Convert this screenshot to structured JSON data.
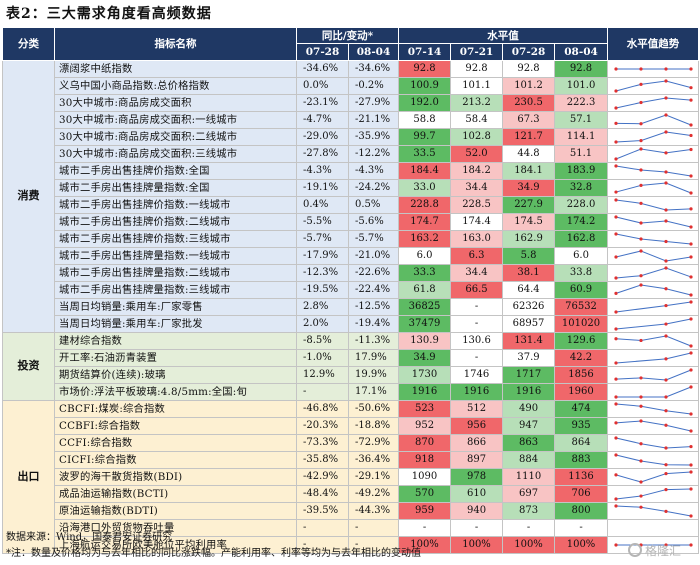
{
  "title": "表2：三大需求角度看高频数据",
  "header": {
    "category": "分类",
    "indicator": "指标名称",
    "yoy_group": "同比/变动*",
    "level_group": "水平值",
    "trend": "水平值趋势",
    "yoy_dates": [
      "07-28",
      "08-04"
    ],
    "level_dates": [
      "07-14",
      "07-21",
      "07-28",
      "08-04"
    ]
  },
  "colors": {
    "header_bg": "#1f3864",
    "consumption_bg": "#dfe8f5",
    "investment_bg": "#e4eed9",
    "export_bg": "#fdf0d2",
    "green_strong": "#5dbb63",
    "green_light": "#b7dfb8",
    "red_strong": "#f0676a",
    "red_light": "#f8c4c4",
    "neutral": "#ffffff",
    "spark_line": "#4472c4",
    "spark_point": "#e03030"
  },
  "groups": [
    {
      "name": "消费",
      "bg": "#dfe8f5",
      "rows": [
        {
          "name": "漂阔浆中纸指数",
          "yoy": [
            "-34.6%",
            "-34.6%"
          ],
          "levels": [
            "92.8",
            "92.8",
            "92.8",
            "92.8"
          ],
          "shade": [
            "rs",
            "w",
            "w",
            "gs"
          ],
          "trend": [
            92.8,
            92.8,
            92.8,
            92.8
          ]
        },
        {
          "name": "义乌中国小商品指数:总价格指数",
          "yoy": [
            "0.0%",
            "-0.2%"
          ],
          "levels": [
            "100.9",
            "101.1",
            "101.2",
            "101.0"
          ],
          "shade": [
            "gs",
            "w",
            "rl",
            "gl"
          ],
          "trend": [
            100.9,
            101.1,
            101.2,
            101.0
          ]
        },
        {
          "name": "30大中城市:商品房成交面积",
          "yoy": [
            "-23.1%",
            "-27.9%"
          ],
          "levels": [
            "192.0",
            "213.2",
            "230.5",
            "222.3"
          ],
          "shade": [
            "gs",
            "gl",
            "rs",
            "rl"
          ],
          "trend": [
            192.0,
            213.2,
            230.5,
            222.3
          ]
        },
        {
          "name": "30大中城市:商品房成交面积:一线城市",
          "yoy": [
            "-4.7%",
            "-21.1%"
          ],
          "levels": [
            "58.8",
            "58.4",
            "67.3",
            "57.1"
          ],
          "shade": [
            "w",
            "w",
            "rl",
            "gl"
          ],
          "trend": [
            58.8,
            58.4,
            67.3,
            57.1
          ]
        },
        {
          "name": "30大中城市:商品房成交面积:二线城市",
          "yoy": [
            "-29.0%",
            "-35.9%"
          ],
          "levels": [
            "99.7",
            "102.8",
            "121.7",
            "114.1"
          ],
          "shade": [
            "gs",
            "gl",
            "rs",
            "rl"
          ],
          "trend": [
            99.7,
            102.8,
            121.7,
            114.1
          ]
        },
        {
          "name": "30大中城市:商品房成交面积:三线城市",
          "yoy": [
            "-27.8%",
            "-12.2%"
          ],
          "levels": [
            "33.5",
            "52.0",
            "44.8",
            "51.1"
          ],
          "shade": [
            "gs",
            "rs",
            "w",
            "rl"
          ],
          "trend": [
            33.5,
            52.0,
            44.8,
            51.1
          ]
        },
        {
          "name": "城市二手房出售挂牌价指数:全国",
          "yoy": [
            "-4.3%",
            "-4.3%"
          ],
          "levels": [
            "184.4",
            "184.2",
            "184.1",
            "183.9"
          ],
          "shade": [
            "rs",
            "rl",
            "gl",
            "gs"
          ],
          "trend": [
            184.4,
            184.2,
            184.1,
            183.9
          ]
        },
        {
          "name": "城市二手房出售挂牌量指数:全国",
          "yoy": [
            "-19.1%",
            "-24.2%"
          ],
          "levels": [
            "33.0",
            "34.4",
            "34.9",
            "32.8"
          ],
          "shade": [
            "gl",
            "rl",
            "rs",
            "gs"
          ],
          "trend": [
            33.0,
            34.4,
            34.9,
            32.8
          ]
        },
        {
          "name": "城市二手房出售挂牌价指数:一线城市",
          "yoy": [
            "0.4%",
            "0.5%"
          ],
          "levels": [
            "228.8",
            "228.5",
            "227.9",
            "228.0"
          ],
          "shade": [
            "rs",
            "rl",
            "gs",
            "gl"
          ],
          "trend": [
            228.8,
            228.5,
            227.9,
            228.0
          ]
        },
        {
          "name": "城市二手房出售挂牌价指数:二线城市",
          "yoy": [
            "-5.5%",
            "-5.6%"
          ],
          "levels": [
            "174.7",
            "174.4",
            "174.5",
            "174.2"
          ],
          "shade": [
            "rs",
            "w",
            "rl",
            "gs"
          ],
          "trend": [
            174.7,
            174.4,
            174.5,
            174.2
          ]
        },
        {
          "name": "城市二手房出售挂牌价指数:三线城市",
          "yoy": [
            "-5.7%",
            "-5.7%"
          ],
          "levels": [
            "163.2",
            "163.0",
            "162.9",
            "162.8"
          ],
          "shade": [
            "rs",
            "rl",
            "gl",
            "gs"
          ],
          "trend": [
            163.2,
            163.0,
            162.9,
            162.8
          ]
        },
        {
          "name": "城市二手房出售挂牌量指数:一线城市",
          "yoy": [
            "-17.9%",
            "-21.0%"
          ],
          "levels": [
            "6.0",
            "6.3",
            "5.8",
            "6.0"
          ],
          "shade": [
            "w",
            "rs",
            "gs",
            "w"
          ],
          "trend": [
            6.0,
            6.3,
            5.8,
            6.0
          ]
        },
        {
          "name": "城市二手房出售挂牌量指数:二线城市",
          "yoy": [
            "-12.3%",
            "-22.6%"
          ],
          "levels": [
            "33.3",
            "34.4",
            "38.1",
            "33.8"
          ],
          "shade": [
            "gs",
            "rl",
            "rs",
            "gl"
          ],
          "trend": [
            33.3,
            34.4,
            38.1,
            33.8
          ]
        },
        {
          "name": "城市二手房出售挂牌量指数:三线城市",
          "yoy": [
            "-19.5%",
            "-22.4%"
          ],
          "levels": [
            "61.8",
            "66.5",
            "64.4",
            "60.9"
          ],
          "shade": [
            "gl",
            "rs",
            "w",
            "gs"
          ],
          "trend": [
            61.8,
            66.5,
            64.4,
            60.9
          ]
        },
        {
          "name": "当周日均销量:乘用车:厂家零售",
          "yoy": [
            "2.8%",
            "-12.5%"
          ],
          "levels": [
            "36825",
            "-",
            "62326",
            "76532"
          ],
          "shade": [
            "gs",
            "w",
            "w",
            "rs"
          ],
          "trend": [
            36825,
            null,
            62326,
            76532
          ]
        },
        {
          "name": "当周日均销量:乘用车:厂家批发",
          "yoy": [
            "2.0%",
            "-19.4%"
          ],
          "levels": [
            "37479",
            "-",
            "68957",
            "101020"
          ],
          "shade": [
            "gs",
            "w",
            "w",
            "rs"
          ],
          "trend": [
            37479,
            null,
            68957,
            101020
          ]
        }
      ]
    },
    {
      "name": "投资",
      "bg": "#e4eed9",
      "rows": [
        {
          "name": "建材综合指数",
          "yoy": [
            "-8.5%",
            "-11.3%"
          ],
          "levels": [
            "130.9",
            "130.6",
            "131.4",
            "129.6"
          ],
          "shade": [
            "rl",
            "w",
            "rs",
            "gs"
          ],
          "trend": [
            130.9,
            130.6,
            131.4,
            129.6
          ]
        },
        {
          "name": "开工率:石油沥青装置",
          "yoy": [
            "-1.0%",
            "17.9%"
          ],
          "levels": [
            "34.9",
            "-",
            "37.9",
            "42.2"
          ],
          "shade": [
            "gs",
            "w",
            "w",
            "rs"
          ],
          "trend": [
            34.9,
            null,
            37.9,
            42.2
          ]
        },
        {
          "name": "期货结算价(连续):玻璃",
          "yoy": [
            "12.9%",
            "19.9%"
          ],
          "levels": [
            "1730",
            "1746",
            "1717",
            "1856"
          ],
          "shade": [
            "gl",
            "w",
            "gs",
            "rs"
          ],
          "trend": [
            1730,
            1746,
            1717,
            1856
          ]
        },
        {
          "name": "市场价:浮法平板玻璃:4.8/5mm:全国:旬",
          "yoy": [
            "-",
            "17.1%"
          ],
          "levels": [
            "1916",
            "1916",
            "1916",
            "1960"
          ],
          "shade": [
            "gs",
            "gs",
            "gs",
            "rs"
          ],
          "trend": [
            1916,
            1916,
            1916,
            1960
          ]
        }
      ]
    },
    {
      "name": "出口",
      "bg": "#fdf0d2",
      "rows": [
        {
          "name": "CBCFI:煤炭:综合指数",
          "yoy": [
            "-46.8%",
            "-50.6%"
          ],
          "levels": [
            "523",
            "512",
            "490",
            "474"
          ],
          "shade": [
            "rs",
            "rl",
            "gl",
            "gs"
          ],
          "trend": [
            523,
            512,
            490,
            474
          ]
        },
        {
          "name": "CCBFI:综合指数",
          "yoy": [
            "-20.3%",
            "-18.8%"
          ],
          "levels": [
            "952",
            "956",
            "947",
            "935"
          ],
          "shade": [
            "rl",
            "rs",
            "gl",
            "gs"
          ],
          "trend": [
            952,
            956,
            947,
            935
          ]
        },
        {
          "name": "CCFI:综合指数",
          "yoy": [
            "-73.3%",
            "-72.9%"
          ],
          "levels": [
            "870",
            "866",
            "863",
            "864"
          ],
          "shade": [
            "rs",
            "rl",
            "gs",
            "gl"
          ],
          "trend": [
            870,
            866,
            863,
            864
          ]
        },
        {
          "name": "CICFI:综合指数",
          "yoy": [
            "-35.8%",
            "-36.4%"
          ],
          "levels": [
            "918",
            "897",
            "884",
            "883"
          ],
          "shade": [
            "rs",
            "rl",
            "gl",
            "gs"
          ],
          "trend": [
            918,
            897,
            884,
            883
          ]
        },
        {
          "name": "波罗的海干散货指数(BDI)",
          "yoy": [
            "-42.9%",
            "-29.1%"
          ],
          "levels": [
            "1090",
            "978",
            "1110",
            "1136"
          ],
          "shade": [
            "w",
            "gs",
            "rl",
            "rs"
          ],
          "trend": [
            1090,
            978,
            1110,
            1136
          ]
        },
        {
          "name": "成品油运输指数(BCTI)",
          "yoy": [
            "-48.4%",
            "-49.2%"
          ],
          "levels": [
            "570",
            "610",
            "697",
            "706"
          ],
          "shade": [
            "gs",
            "gl",
            "rl",
            "rs"
          ],
          "trend": [
            570,
            610,
            697,
            706
          ]
        },
        {
          "name": "原油运输指数(BDTI)",
          "yoy": [
            "-39.5%",
            "-44.3%"
          ],
          "levels": [
            "959",
            "940",
            "873",
            "800"
          ],
          "shade": [
            "rs",
            "rl",
            "gl",
            "gs"
          ],
          "trend": [
            959,
            940,
            873,
            800
          ]
        },
        {
          "name": "沿海港口外贸货物吞吐量",
          "yoy": [
            "-",
            "-"
          ],
          "levels": [
            "-",
            "-",
            "-",
            "-"
          ],
          "shade": [
            "w",
            "w",
            "w",
            "w"
          ],
          "trend": [
            null,
            null,
            null,
            null
          ]
        },
        {
          "name": "上海航运交易所欧美舱位平均利用率",
          "yoy": [
            "-",
            "-"
          ],
          "levels": [
            "100%",
            "100%",
            "100%",
            "100%"
          ],
          "shade": [
            "rs",
            "rs",
            "rs",
            "rs"
          ],
          "trend": [
            100,
            100,
            100,
            100
          ]
        }
      ]
    }
  ],
  "notes": {
    "source": "数据来源：Wind，国泰君安证券研究",
    "footnote": "*注：数量及价格均为与去年相比的同比涨跌幅。产能利用率、利率等均为与去年相比的变动值"
  },
  "watermark": "格隆汇"
}
